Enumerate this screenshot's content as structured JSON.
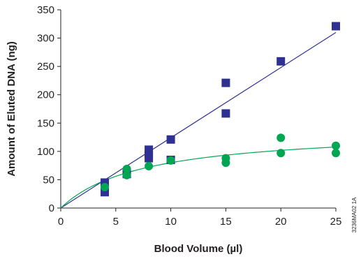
{
  "chart_data": {
    "type": "scatter",
    "xlabel": "Blood Volume (µl)",
    "ylabel": "Amount of Eluted DNA (ng)",
    "xlim": [
      0,
      25
    ],
    "ylim": [
      0,
      350
    ],
    "x_ticks": [
      0,
      5,
      10,
      15,
      20,
      25
    ],
    "y_ticks": [
      0,
      50,
      100,
      150,
      200,
      250,
      300,
      350
    ],
    "grid": false,
    "series": [
      {
        "marker": "square",
        "color": "#2e3192",
        "points": [
          [
            4,
            28
          ],
          [
            4,
            45
          ],
          [
            6,
            60
          ],
          [
            6,
            62
          ],
          [
            8,
            88
          ],
          [
            8,
            95
          ],
          [
            8,
            103
          ],
          [
            10,
            85
          ],
          [
            10,
            121
          ],
          [
            15,
            167
          ],
          [
            15,
            221
          ],
          [
            20,
            259
          ],
          [
            25,
            321
          ]
        ],
        "fit": {
          "kind": "linear",
          "from": [
            0,
            0
          ],
          "to": [
            25,
            310
          ]
        }
      },
      {
        "marker": "circle",
        "color": "#00a651",
        "points": [
          [
            4,
            37
          ],
          [
            6,
            58
          ],
          [
            6,
            69
          ],
          [
            8,
            74
          ],
          [
            10,
            84
          ],
          [
            15,
            80
          ],
          [
            15,
            88
          ],
          [
            20,
            97
          ],
          [
            20,
            124
          ],
          [
            25,
            97
          ],
          [
            25,
            110
          ]
        ],
        "fit": {
          "kind": "saturating",
          "vmax": 140,
          "k": 7.5
        }
      }
    ],
    "side_note": "3236MA02 1A"
  }
}
